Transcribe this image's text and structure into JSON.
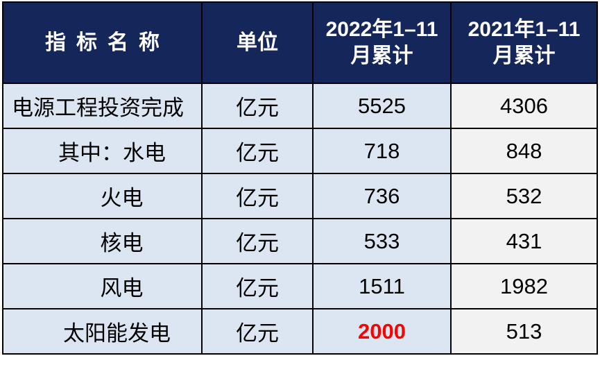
{
  "table": {
    "header": {
      "indicator": "指标名称",
      "unit": "单位",
      "y2022": {
        "line1": "2022年1–11",
        "line2": "月累计"
      },
      "y2021": {
        "line1": "2021年1–11",
        "line2": "月累计"
      }
    }
  },
  "chart_data": {
    "type": "table",
    "title": "",
    "columns": [
      "指标名称",
      "单位",
      "2022年1-11月累计",
      "2021年1-11月累计"
    ],
    "rows": [
      [
        "电源工程投资完成",
        "亿元",
        5525,
        4306
      ],
      [
        "其中：水电",
        "亿元",
        718,
        848
      ],
      [
        "火电",
        "亿元",
        736,
        532
      ],
      [
        "核电",
        "亿元",
        533,
        431
      ],
      [
        "风电",
        "亿元",
        1511,
        1982
      ],
      [
        "太阳能发电",
        "亿元",
        2000,
        513
      ]
    ],
    "highlighted_cell": {
      "row": "太阳能发电",
      "column": "2022年1-11月累计",
      "value": 2000,
      "color": "#ff0000"
    }
  },
  "colors": {
    "header_bg": "#14265a",
    "header_text": "#ffffff",
    "body_blue_bg": "#dce6f2",
    "col2021_bg": "#f2f2f2",
    "border": "#000000",
    "highlight_value": "#ff0000",
    "body_text": "#000000"
  }
}
